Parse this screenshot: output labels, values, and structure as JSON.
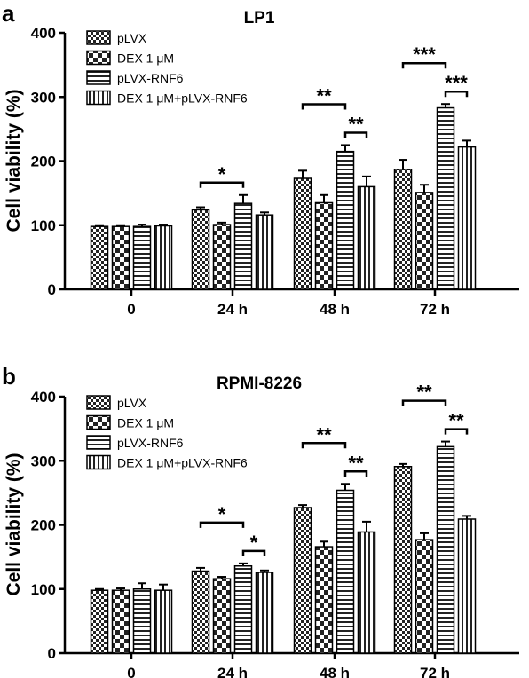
{
  "chart_data": [
    {
      "panel_label": "a",
      "type": "bar",
      "title": "LP1",
      "xlabel": "",
      "ylabel": "Cell viability (%)",
      "ylim": [
        0,
        400
      ],
      "yticks": [
        0,
        100,
        200,
        300,
        400
      ],
      "categories": [
        "0",
        "24 h",
        "48 h",
        "72 h"
      ],
      "legend_position": "top-left",
      "series": [
        {
          "name": "pLVX",
          "values": [
            98,
            124,
            173,
            187
          ],
          "errors": [
            2,
            4,
            12,
            15
          ],
          "pattern": "checker-small"
        },
        {
          "name": "DEX 1 μM",
          "values": [
            98,
            101,
            135,
            151
          ],
          "errors": [
            2,
            3,
            12,
            12
          ],
          "pattern": "checker-large"
        },
        {
          "name": "pLVX-RNF6",
          "values": [
            98,
            134,
            215,
            283
          ],
          "errors": [
            3,
            13,
            10,
            6
          ],
          "pattern": "horizontal"
        },
        {
          "name": "DEX 1 μM+pLVX-RNF6",
          "values": [
            99,
            116,
            160,
            222
          ],
          "errors": [
            2,
            4,
            16,
            10
          ],
          "pattern": "vertical"
        }
      ],
      "significance": [
        {
          "category": 1,
          "from": 0,
          "to": 2,
          "label": "*"
        },
        {
          "category": 2,
          "from": 0,
          "to": 2,
          "label": "**"
        },
        {
          "category": 2,
          "from": 2,
          "to": 3,
          "label": "**"
        },
        {
          "category": 3,
          "from": 0,
          "to": 2,
          "label": "***"
        },
        {
          "category": 3,
          "from": 2,
          "to": 3,
          "label": "***"
        }
      ]
    },
    {
      "panel_label": "b",
      "type": "bar",
      "title": "RPMI-8226",
      "xlabel": "",
      "ylabel": "Cell viability (%)",
      "ylim": [
        0,
        400
      ],
      "yticks": [
        0,
        100,
        200,
        300,
        400
      ],
      "categories": [
        "0",
        "24 h",
        "48 h",
        "72 h"
      ],
      "legend_position": "top-left",
      "series": [
        {
          "name": "pLVX",
          "values": [
            98,
            128,
            227,
            291
          ],
          "errors": [
            2,
            5,
            4,
            4
          ],
          "pattern": "checker-small"
        },
        {
          "name": "DEX 1 μM",
          "values": [
            98,
            116,
            166,
            177
          ],
          "errors": [
            3,
            3,
            8,
            10
          ],
          "pattern": "checker-large"
        },
        {
          "name": "pLVX-RNF6",
          "values": [
            100,
            136,
            254,
            322
          ],
          "errors": [
            9,
            4,
            10,
            8
          ],
          "pattern": "horizontal"
        },
        {
          "name": "DEX 1 μM+pLVX-RNF6",
          "values": [
            98,
            126,
            189,
            209
          ],
          "errors": [
            9,
            3,
            16,
            5
          ],
          "pattern": "vertical"
        }
      ],
      "significance": [
        {
          "category": 1,
          "from": 0,
          "to": 2,
          "label": "*"
        },
        {
          "category": 1,
          "from": 2,
          "to": 3,
          "label": "*"
        },
        {
          "category": 2,
          "from": 0,
          "to": 2,
          "label": "**"
        },
        {
          "category": 2,
          "from": 2,
          "to": 3,
          "label": "**"
        },
        {
          "category": 3,
          "from": 0,
          "to": 2,
          "label": "**"
        },
        {
          "category": 3,
          "from": 2,
          "to": 3,
          "label": "**"
        }
      ]
    }
  ]
}
